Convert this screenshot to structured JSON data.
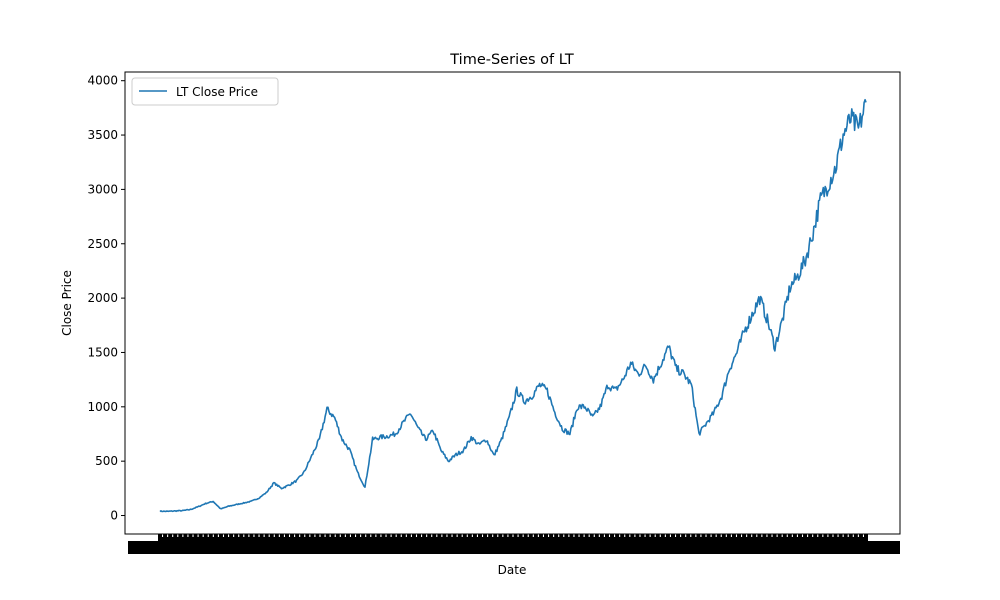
{
  "chart_data": {
    "type": "line",
    "title": "Time-Series of LT",
    "xlabel": "Date",
    "ylabel": "Close Price",
    "ylim": [
      -170,
      4080
    ],
    "yticks": [
      0,
      500,
      1000,
      1500,
      2000,
      2500,
      3000,
      3500,
      4000
    ],
    "legend": {
      "placement": "upper-left"
    },
    "grid": false,
    "series": [
      {
        "name": "LT Close Price",
        "color": "#1f77b4",
        "y": [
          40,
          38,
          42,
          45,
          55,
          80,
          110,
          130,
          60,
          85,
          100,
          115,
          130,
          160,
          210,
          300,
          250,
          280,
          320,
          400,
          550,
          700,
          980,
          900,
          700,
          600,
          400,
          260,
          700,
          720,
          730,
          750,
          850,
          940,
          800,
          700,
          780,
          600,
          500,
          560,
          600,
          720,
          650,
          700,
          550,
          700,
          900,
          1150,
          1050,
          1100,
          1200,
          1150,
          950,
          800,
          750,
          1000,
          1000,
          900,
          1000,
          1200,
          1150,
          1250,
          1400,
          1300,
          1380,
          1250,
          1400,
          1550,
          1350,
          1300,
          1200,
          750,
          850,
          950,
          1100,
          1350,
          1500,
          1700,
          1850,
          2000,
          1800,
          1550,
          1800,
          2100,
          2200,
          2350,
          2600,
          2900,
          3050,
          3200,
          3500,
          3650,
          3550,
          3800
        ]
      }
    ]
  }
}
